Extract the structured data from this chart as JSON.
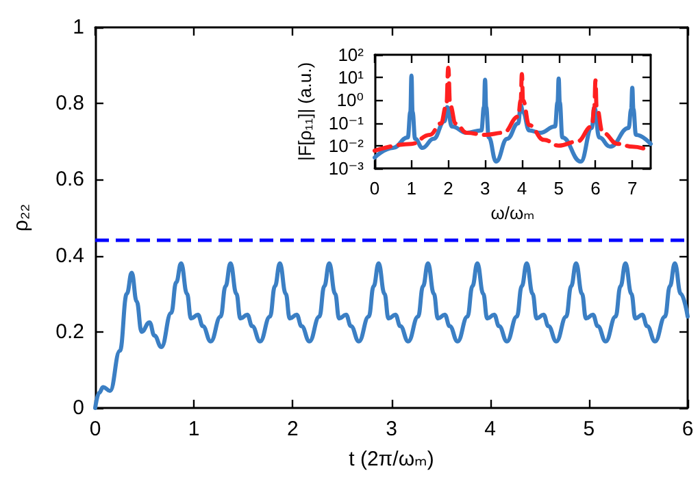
{
  "chart_data": [
    {
      "type": "line",
      "xlabel": "t (2π/ωₘ)",
      "ylabel": "ρ₂₂",
      "xlim": [
        0,
        6
      ],
      "xticks": [
        0,
        1,
        2,
        3,
        4,
        5,
        6
      ],
      "ylim": [
        0,
        1
      ],
      "yticks": [
        0,
        0.2,
        0.4,
        0.6,
        0.8,
        1
      ],
      "marker": "none",
      "line_style": "solid",
      "x": [
        0,
        0.04,
        0.08,
        0.15,
        0.25,
        0.32,
        0.37,
        0.42,
        0.47,
        0.55,
        0.6,
        0.67,
        0.77,
        0.82,
        0.87,
        0.93,
        0.97,
        1.04,
        1.09,
        1.17,
        1.27,
        1.32,
        1.37,
        1.43,
        1.47,
        1.54,
        1.59,
        1.67,
        1.77,
        1.82,
        1.87,
        1.93,
        1.97,
        2.04,
        2.09,
        2.17,
        2.27,
        2.32,
        2.37,
        2.43,
        2.47,
        2.54,
        2.59,
        2.67,
        2.77,
        2.82,
        2.87,
        2.93,
        2.97,
        3.04,
        3.09,
        3.17,
        3.27,
        3.32,
        3.37,
        3.43,
        3.47,
        3.54,
        3.59,
        3.67,
        3.77,
        3.82,
        3.87,
        3.93,
        3.97,
        4.04,
        4.09,
        4.17,
        4.27,
        4.32,
        4.37,
        4.43,
        4.47,
        4.54,
        4.59,
        4.67,
        4.77,
        4.82,
        4.87,
        4.93,
        4.97,
        5.04,
        5.09,
        5.17,
        5.27,
        5.32,
        5.37,
        5.43,
        5.47,
        5.54,
        5.59,
        5.67,
        5.77,
        5.82,
        5.87,
        5.93,
        6.0
      ],
      "series": [
        {
          "color": "#3b7fc4",
          "values": [
            0,
            0.04,
            0.055,
            0.045,
            0.15,
            0.3,
            0.355,
            0.28,
            0.2,
            0.225,
            0.19,
            0.16,
            0.25,
            0.33,
            0.38,
            0.3,
            0.235,
            0.245,
            0.215,
            0.175,
            0.24,
            0.32,
            0.38,
            0.3,
            0.235,
            0.245,
            0.215,
            0.175,
            0.24,
            0.32,
            0.38,
            0.3,
            0.235,
            0.245,
            0.215,
            0.175,
            0.24,
            0.32,
            0.38,
            0.3,
            0.235,
            0.245,
            0.215,
            0.175,
            0.24,
            0.32,
            0.38,
            0.3,
            0.235,
            0.245,
            0.215,
            0.175,
            0.24,
            0.32,
            0.38,
            0.3,
            0.235,
            0.245,
            0.215,
            0.175,
            0.24,
            0.32,
            0.38,
            0.3,
            0.235,
            0.245,
            0.215,
            0.175,
            0.24,
            0.32,
            0.38,
            0.3,
            0.235,
            0.245,
            0.215,
            0.175,
            0.24,
            0.32,
            0.38,
            0.3,
            0.235,
            0.245,
            0.215,
            0.175,
            0.24,
            0.32,
            0.38,
            0.3,
            0.235,
            0.245,
            0.215,
            0.175,
            0.24,
            0.32,
            0.38,
            0.3,
            0.24
          ]
        }
      ],
      "ref_lines": [
        {
          "axis": "y",
          "value": 0.44,
          "color": "#0000ff",
          "line_style": "dashed"
        }
      ]
    },
    {
      "type": "line",
      "xlabel": "ω/ωₘ",
      "ylabel": "|F[ρ₁₁]| (a.u.)",
      "log": "y",
      "xlim": [
        0,
        7.5
      ],
      "xticks": [
        0,
        1,
        2,
        3,
        4,
        5,
        6,
        7
      ],
      "ylim": [
        0.001,
        100
      ],
      "yticks": [
        {
          "value": 0.001,
          "label": "10⁻³"
        },
        {
          "value": 0.01,
          "label": "10⁻²"
        },
        {
          "value": 0.1,
          "label": "10⁻¹"
        },
        {
          "value": 1,
          "label": "10⁰"
        },
        {
          "value": 10,
          "label": "10¹"
        },
        {
          "value": 100,
          "label": "10²"
        }
      ],
      "marker": "none",
      "series": [
        {
          "color": "#3b7fc4",
          "line_style": "solid",
          "x": [
            0,
            0.5,
            0.9,
            0.97,
            1,
            1.03,
            1.1,
            1.3,
            1.6,
            1.9,
            1.97,
            2.1,
            2.5,
            2.9,
            2.97,
            3,
            3.03,
            3.1,
            3.3,
            3.6,
            3.9,
            3.97,
            4.03,
            4.2,
            4.5,
            4.9,
            4.97,
            5,
            5.03,
            5.1,
            5.6,
            5.9,
            5.97,
            6.1,
            6.4,
            6.9,
            6.97,
            7,
            7.03,
            7.1,
            7.5
          ],
          "values": [
            0.003,
            0.008,
            0.023,
            0.3,
            12,
            0.3,
            0.02,
            0.008,
            0.02,
            0.12,
            0.5,
            0.07,
            0.037,
            0.047,
            0.5,
            8,
            0.5,
            0.023,
            0.002,
            0.02,
            0.095,
            0.6,
            0.3,
            0.047,
            0.037,
            0.07,
            0.8,
            9,
            0.8,
            0.023,
            0.002,
            0.06,
            0.5,
            0.023,
            0.009,
            0.06,
            0.4,
            3.5,
            0.4,
            0.03,
            0.012
          ]
        },
        {
          "color": "#ff2020",
          "line_style": "dashed",
          "x": [
            0,
            1,
            1.5,
            1.8,
            1.95,
            2,
            2.05,
            2.2,
            2.5,
            3,
            3.5,
            3.9,
            3.97,
            4,
            4.03,
            4.2,
            4.6,
            5,
            5.5,
            5.9,
            5.97,
            6,
            6.03,
            6.2,
            6.6,
            7,
            7.5
          ],
          "values": [
            0.006,
            0.012,
            0.03,
            0.095,
            0.6,
            27,
            0.6,
            0.095,
            0.037,
            0.03,
            0.037,
            0.19,
            1,
            14,
            1,
            0.08,
            0.018,
            0.01,
            0.015,
            0.07,
            0.5,
            7.4,
            0.5,
            0.037,
            0.012,
            0.009,
            0.006
          ]
        }
      ]
    }
  ]
}
